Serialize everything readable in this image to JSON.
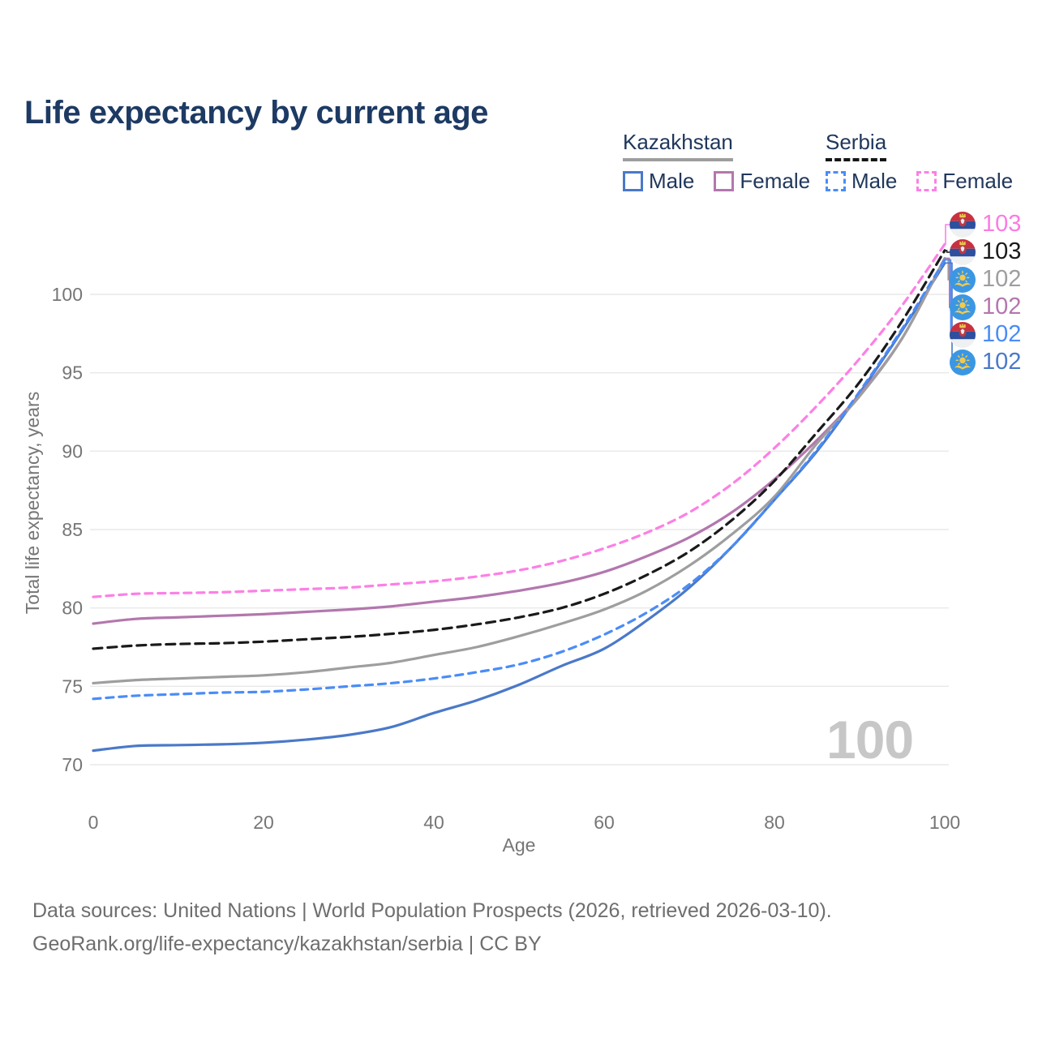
{
  "title": "Life expectancy by current age",
  "legend": {
    "groups": [
      {
        "country": "Kazakhstan",
        "line_style": "solid",
        "underline_color": "#9e9e9e",
        "items": [
          {
            "label": "Male",
            "color": "#4a79c8"
          },
          {
            "label": "Female",
            "color": "#b377ae"
          }
        ]
      },
      {
        "country": "Serbia",
        "line_style": "dashed",
        "underline_color": "#161616",
        "items": [
          {
            "label": "Male",
            "color": "#4a8cf7"
          },
          {
            "label": "Female",
            "color": "#fc80e5"
          }
        ]
      }
    ]
  },
  "watermark": "100",
  "end_labels": [
    {
      "series": "Serbia Female",
      "value": "103",
      "flag": "serbia",
      "color": "#fb7be2"
    },
    {
      "series": "Serbia",
      "value": "103",
      "flag": "serbia",
      "color": "#1a1a1a"
    },
    {
      "series": "Kazakhstan",
      "value": "102",
      "flag": "kazakhstan",
      "color": "#9e9e9e"
    },
    {
      "series": "Kazakhstan Female",
      "value": "102",
      "flag": "kazakhstan",
      "color": "#b377ae"
    },
    {
      "series": "Serbia Male",
      "value": "102",
      "flag": "serbia",
      "color": "#4a8cf7"
    },
    {
      "series": "Kazakhstan Male",
      "value": "102",
      "flag": "kazakhstan",
      "color": "#4a79c8"
    }
  ],
  "footer": {
    "line1": "Data sources: United Nations | World Population Prospects (2026, retrieved 2026-03-10).",
    "line2": "GeoRank.org/life-expectancy/kazakhstan/serbia | CC BY"
  },
  "chart_data": {
    "type": "line",
    "title": "Life expectancy by current age",
    "xlabel": "Age",
    "ylabel": "Total life expectancy, years",
    "xlim": [
      0,
      100
    ],
    "ylim": [
      68.5,
      103.5
    ],
    "x_ticks": [
      0,
      20,
      40,
      60,
      80,
      100
    ],
    "y_ticks": [
      70,
      75,
      80,
      85,
      90,
      95,
      100
    ],
    "grid": "horizontal",
    "legend_position": "top-right",
    "x": [
      0,
      5,
      10,
      15,
      20,
      25,
      30,
      35,
      40,
      45,
      50,
      55,
      60,
      65,
      70,
      75,
      80,
      85,
      90,
      95,
      100
    ],
    "series": [
      {
        "name": "Kazakhstan Male",
        "country": "Kazakhstan",
        "sex": "male",
        "color": "#4a79c8",
        "dash": "solid",
        "values": [
          70.9,
          71.2,
          71.25,
          71.3,
          71.4,
          71.6,
          71.9,
          72.4,
          73.3,
          74.1,
          75.1,
          76.3,
          77.4,
          79.2,
          81.3,
          83.9,
          86.9,
          90.0,
          93.7,
          97.7,
          102.0
        ]
      },
      {
        "name": "Kazakhstan Female",
        "country": "Kazakhstan",
        "sex": "female",
        "color": "#b377ae",
        "dash": "solid",
        "values": [
          79.0,
          79.3,
          79.4,
          79.5,
          79.6,
          79.75,
          79.9,
          80.1,
          80.4,
          80.7,
          81.1,
          81.6,
          82.3,
          83.3,
          84.5,
          86.1,
          88.2,
          90.7,
          93.6,
          97.2,
          102.3
        ]
      },
      {
        "name": "Kazakhstan",
        "country": "Kazakhstan",
        "sex": "total",
        "color": "#9e9e9e",
        "dash": "solid",
        "values": [
          75.2,
          75.4,
          75.5,
          75.6,
          75.7,
          75.9,
          76.2,
          76.5,
          77.0,
          77.5,
          78.2,
          79.0,
          79.9,
          81.1,
          82.7,
          84.7,
          87.1,
          90.5,
          93.5,
          97.2,
          102.3
        ]
      },
      {
        "name": "Serbia Male",
        "country": "Serbia",
        "sex": "male",
        "color": "#4a8cf7",
        "dash": "9 7",
        "values": [
          74.2,
          74.4,
          74.5,
          74.6,
          74.65,
          74.8,
          75.0,
          75.2,
          75.5,
          75.9,
          76.4,
          77.2,
          78.3,
          79.7,
          81.5,
          83.9,
          86.9,
          90.1,
          93.8,
          97.8,
          102.2
        ]
      },
      {
        "name": "Serbia",
        "country": "Serbia",
        "sex": "total",
        "color": "#1a1a1a",
        "dash": "11 7",
        "values": [
          77.4,
          77.6,
          77.7,
          77.75,
          77.85,
          78.0,
          78.15,
          78.35,
          78.6,
          78.95,
          79.4,
          80.0,
          80.9,
          82.1,
          83.6,
          85.6,
          88.1,
          91.2,
          94.4,
          98.3,
          102.8
        ]
      },
      {
        "name": "Serbia Female",
        "country": "Serbia",
        "sex": "female",
        "color": "#fc80e5",
        "dash": "9 7",
        "values": [
          80.7,
          80.9,
          80.95,
          81.0,
          81.1,
          81.2,
          81.3,
          81.5,
          81.7,
          82.0,
          82.4,
          83.0,
          83.8,
          84.8,
          86.1,
          87.9,
          90.2,
          92.9,
          95.9,
          99.3,
          103.2
        ]
      }
    ]
  }
}
